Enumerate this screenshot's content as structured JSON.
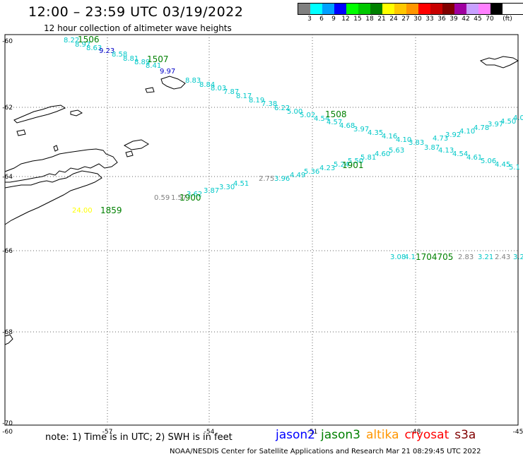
{
  "title": "12:00 – 23:59 UTC 03/19/2022",
  "subtitle": "12 hour collection of altimeter wave heights",
  "legend": {
    "unit": "(ft)",
    "colors": [
      "#808080",
      "#00ffff",
      "#00a0ff",
      "#0000ff",
      "#00ff00",
      "#00c800",
      "#008000",
      "#ffff00",
      "#ffc800",
      "#ff9600",
      "#ff0000",
      "#c80000",
      "#800000",
      "#a000a0",
      "#c8a0ff",
      "#ff80ff",
      "#000000"
    ],
    "labels": [
      "3",
      "6",
      "9",
      "12",
      "15",
      "18",
      "21",
      "24",
      "27",
      "30",
      "33",
      "36",
      "39",
      "42",
      "45",
      "70"
    ]
  },
  "axes": {
    "lon_labels": [
      "-57",
      "-54",
      "-51",
      "-48",
      "-45"
    ],
    "lat_labels": [
      "-60",
      "-62",
      "-64",
      "-66",
      "-68",
      "-70"
    ],
    "corner_label": "-60"
  },
  "time_labels": [
    {
      "text": "1506",
      "color": "#008000"
    },
    {
      "text": "1507",
      "color": "#008000"
    },
    {
      "text": "1508",
      "color": "#008000"
    },
    {
      "text": "1901",
      "color": "#008000"
    },
    {
      "text": "1900",
      "color": "#008000"
    },
    {
      "text": "1859",
      "color": "#008000"
    },
    {
      "text": "1704705",
      "color": "#008000"
    }
  ],
  "wave_heights": [
    {
      "text": "8.22",
      "color": "#00c8c8"
    },
    {
      "text": "8.97",
      "color": "#00c8c8"
    },
    {
      "text": "8.63",
      "color": "#00c8c8"
    },
    {
      "text": "9.23",
      "color": "#0000c8"
    },
    {
      "text": "8.58",
      "color": "#00c8c8"
    },
    {
      "text": "8.81",
      "color": "#00c8c8"
    },
    {
      "text": "8.89",
      "color": "#00c8c8"
    },
    {
      "text": "8.41",
      "color": "#00c8c8"
    },
    {
      "text": "9.97",
      "color": "#0000c8"
    },
    {
      "text": "8.83",
      "color": "#00c8c8"
    },
    {
      "text": "8.84",
      "color": "#00c8c8"
    },
    {
      "text": "8.03",
      "color": "#00c8c8"
    },
    {
      "text": "7.87",
      "color": "#00c8c8"
    },
    {
      "text": "8.17",
      "color": "#00c8c8"
    },
    {
      "text": "8.19",
      "color": "#00c8c8"
    },
    {
      "text": "7.38",
      "color": "#00c8c8"
    },
    {
      "text": "6.22",
      "color": "#00c8c8"
    },
    {
      "text": "5.00",
      "color": "#00c8c8"
    },
    {
      "text": "5.02",
      "color": "#00c8c8"
    },
    {
      "text": "4.54",
      "color": "#00c8c8"
    },
    {
      "text": "4.57",
      "color": "#00c8c8"
    },
    {
      "text": "4.68",
      "color": "#00c8c8"
    },
    {
      "text": "3.97",
      "color": "#00c8c8"
    },
    {
      "text": "4.35",
      "color": "#00c8c8"
    },
    {
      "text": "4.16",
      "color": "#00c8c8"
    },
    {
      "text": "4.10",
      "color": "#00c8c8"
    },
    {
      "text": "3.83",
      "color": "#00c8c8"
    },
    {
      "text": "4.73",
      "color": "#00c8c8"
    },
    {
      "text": "3.92",
      "color": "#00c8c8"
    },
    {
      "text": "4.10",
      "color": "#00c8c8"
    },
    {
      "text": "4.78",
      "color": "#00c8c8"
    },
    {
      "text": "3.97",
      "color": "#00c8c8"
    },
    {
      "text": "4.50",
      "color": "#00c8c8"
    },
    {
      "text": "4.0",
      "color": "#00c8c8"
    },
    {
      "text": "3.87",
      "color": "#00c8c8"
    },
    {
      "text": "4.13",
      "color": "#00c8c8"
    },
    {
      "text": "4.54",
      "color": "#00c8c8"
    },
    {
      "text": "4.61",
      "color": "#00c8c8"
    },
    {
      "text": "5.06",
      "color": "#00c8c8"
    },
    {
      "text": "4.45",
      "color": "#00c8c8"
    },
    {
      "text": "5.1",
      "color": "#00c8c8"
    },
    {
      "text": "5.63",
      "color": "#00c8c8"
    },
    {
      "text": "4.60",
      "color": "#00c8c8"
    },
    {
      "text": "5.81",
      "color": "#00c8c8"
    },
    {
      "text": "5.50",
      "color": "#00c8c8"
    },
    {
      "text": "5.24",
      "color": "#00c8c8"
    },
    {
      "text": "4.23",
      "color": "#00c8c8"
    },
    {
      "text": "5.36",
      "color": "#00c8c8"
    },
    {
      "text": "4.49",
      "color": "#00c8c8"
    },
    {
      "text": "3.96",
      "color": "#00c8c8"
    },
    {
      "text": "2.75",
      "color": "#808080"
    },
    {
      "text": "4.51",
      "color": "#00c8c8"
    },
    {
      "text": "3.30",
      "color": "#00c8c8"
    },
    {
      "text": "3.87",
      "color": "#00c8c8"
    },
    {
      "text": "3.62",
      "color": "#00c8c8"
    },
    {
      "text": "1.57",
      "color": "#808080"
    },
    {
      "text": "0.59",
      "color": "#808080"
    },
    {
      "text": "24.00",
      "color": "#ffff00"
    },
    {
      "text": "3.08",
      "color": "#00c8c8"
    },
    {
      "text": "4.1",
      "color": "#00c8c8"
    },
    {
      "text": "2.83",
      "color": "#808080"
    },
    {
      "text": "3.21",
      "color": "#00c8c8"
    },
    {
      "text": "2.43",
      "color": "#808080"
    },
    {
      "text": "3.2",
      "color": "#00c8c8"
    }
  ],
  "note": "note:  1) Time is in UTC;  2) SWH is in feet",
  "satellites": [
    {
      "name": "jason2",
      "color": "#0000ff"
    },
    {
      "name": "jason3",
      "color": "#008000"
    },
    {
      "name": "altika",
      "color": "#ff9600"
    },
    {
      "name": "cryosat",
      "color": "#ff0000"
    },
    {
      "name": "s3a",
      "color": "#800000"
    }
  ],
  "credit": "NOAA/NESDIS Center for Satellite Applications and Research    Mar 21 08:29:45 UTC 2022"
}
